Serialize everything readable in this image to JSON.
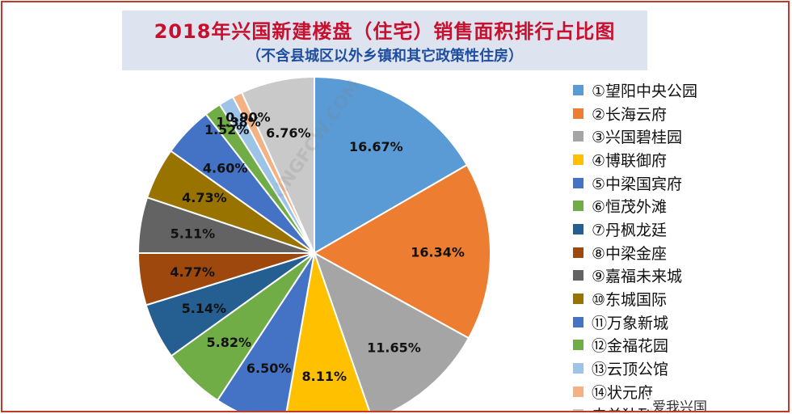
{
  "title": "2018年兴国新建楼盘（住宅）销售面积排行占比图",
  "subtitle": "（不含县城区以外乡镇和其它政策性住房）",
  "watermark": {
    "text": "XINGFCW.COM",
    "badge": "爱我兴国"
  },
  "colors": {
    "title": "#c8102e",
    "subtitle": "#1f4e9e",
    "title_bg": "#dde4f0",
    "border": "#c0392b"
  },
  "chart_data": {
    "type": "pie",
    "title": "2018年兴国新建楼盘（住宅）销售面积排行占比图",
    "subtitle": "（不含县城区以外乡镇和其它政策性住房）",
    "legend_position": "right",
    "slices": [
      {
        "label": "①望阳中央公园",
        "value": 16.67,
        "value_label": "16.67%",
        "color": "#5b9bd5"
      },
      {
        "label": "②长海云府",
        "value": 16.34,
        "value_label": "16.34%",
        "color": "#ed7d31"
      },
      {
        "label": "③兴国碧桂园",
        "value": 11.65,
        "value_label": "11.65%",
        "color": "#a5a5a5"
      },
      {
        "label": "④博联御府",
        "value": 8.11,
        "value_label": "8.11%",
        "color": "#ffc000"
      },
      {
        "label": "⑤中梁国宾府",
        "value": 6.5,
        "value_label": "6.50%",
        "color": "#4472c4"
      },
      {
        "label": "⑥恒茂外滩",
        "value": 5.82,
        "value_label": "5.82%",
        "color": "#70ad47"
      },
      {
        "label": "⑦丹枫龙廷",
        "value": 5.14,
        "value_label": "5.14%",
        "color": "#255e91"
      },
      {
        "label": "⑧中梁金座",
        "value": 4.77,
        "value_label": "4.77%",
        "color": "#9e480e"
      },
      {
        "label": "⑨嘉福未来城",
        "value": 5.11,
        "value_label": "5.11%",
        "color": "#636363"
      },
      {
        "label": "⑩东城国际",
        "value": 4.73,
        "value_label": "4.73%",
        "color": "#997300"
      },
      {
        "label": "⑪万象新城",
        "value": 4.6,
        "value_label": "4.60%",
        "color": "#4472c4"
      },
      {
        "label": "⑫金福花园",
        "value": 1.52,
        "value_label": "1.52%",
        "color": "#70ad47"
      },
      {
        "label": "⑬云顶公馆",
        "value": 1.38,
        "value_label": "1.38%",
        "color": "#9dc3e6"
      },
      {
        "label": "⑭状元府",
        "value": 0.9,
        "value_label": "0.90%",
        "color": "#f4b183"
      },
      {
        "label": "未单独列出",
        "value": 6.76,
        "value_label": "6.76%",
        "color": "#c9c9c9"
      }
    ]
  }
}
